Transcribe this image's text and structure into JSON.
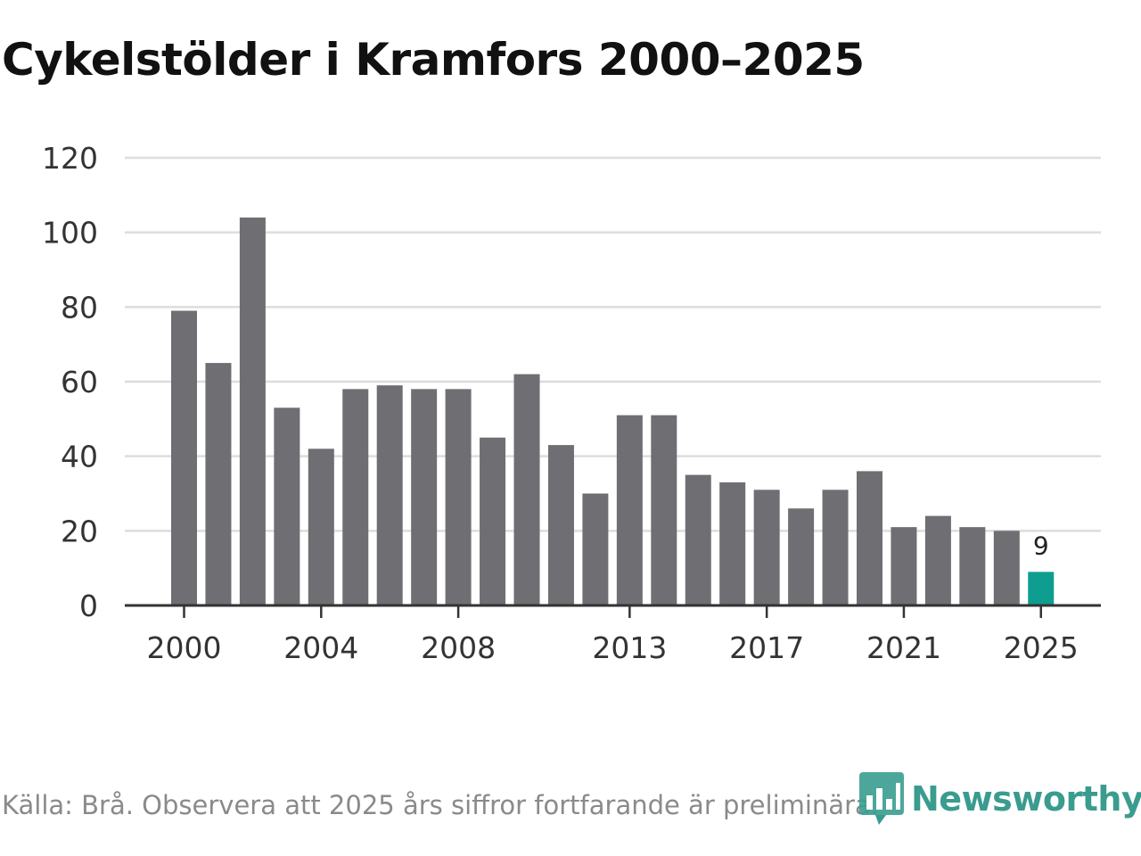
{
  "chart_data": {
    "type": "bar",
    "title": "Cykelstölder i Kramfors 2000–2025",
    "categories": [
      "2000",
      "2001",
      "2002",
      "2003",
      "2004",
      "2005",
      "2006",
      "2007",
      "2008",
      "2009",
      "2010",
      "2011",
      "2012",
      "2013",
      "2014",
      "2015",
      "2016",
      "2017",
      "2018",
      "2019",
      "2020",
      "2021",
      "2022",
      "2023",
      "2024",
      "2025"
    ],
    "values": [
      79,
      65,
      104,
      53,
      42,
      58,
      59,
      58,
      58,
      45,
      62,
      43,
      30,
      51,
      51,
      35,
      33,
      31,
      26,
      31,
      36,
      21,
      24,
      21,
      20,
      9
    ],
    "x_tick_labels": [
      "2000",
      "2004",
      "2008",
      "2013",
      "2017",
      "2021",
      "2025"
    ],
    "y_ticks": [
      0,
      20,
      40,
      60,
      80,
      100,
      120
    ],
    "ylim": [
      0,
      120
    ],
    "xlabel": "",
    "ylabel": "",
    "grid": true,
    "highlight": {
      "category": "2025",
      "label": "9"
    },
    "colors": {
      "bar": "#6e6e73",
      "highlight": "#0f9d8f",
      "grid": "#dddddd",
      "axis": "#333333"
    }
  },
  "source": "Källa: Brå. Observera att 2025 års siffror fortfarande är preliminära.",
  "logo": {
    "text": "Newsworthy",
    "icon": "newsworthy-bar-chart-icon",
    "color": "#3a9c8f"
  }
}
